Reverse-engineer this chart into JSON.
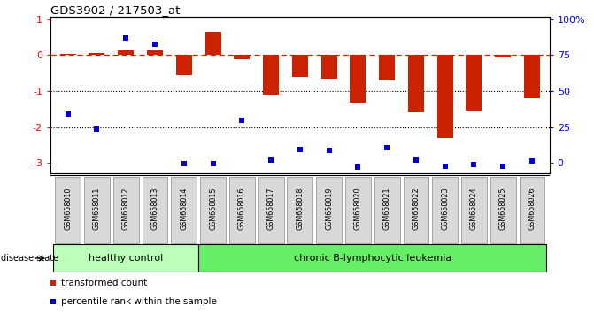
{
  "title": "GDS3902 / 217503_at",
  "samples": [
    "GSM658010",
    "GSM658011",
    "GSM658012",
    "GSM658013",
    "GSM658014",
    "GSM658015",
    "GSM658016",
    "GSM658017",
    "GSM658018",
    "GSM658019",
    "GSM658020",
    "GSM658021",
    "GSM658022",
    "GSM658023",
    "GSM658024",
    "GSM658025",
    "GSM658026"
  ],
  "red_values": [
    0.02,
    0.06,
    0.12,
    0.12,
    -0.55,
    0.65,
    -0.12,
    -1.1,
    -0.62,
    -0.65,
    -1.32,
    -0.72,
    -1.6,
    -2.3,
    -1.55,
    -0.06,
    -1.2
  ],
  "blue_values": [
    -1.65,
    -2.05,
    0.46,
    0.3,
    -3.02,
    -3.02,
    -1.82,
    -2.92,
    -2.62,
    -2.65,
    -3.12,
    -2.58,
    -2.92,
    -3.1,
    -3.05,
    -3.08,
    -2.95
  ],
  "bar_color": "#cc2200",
  "dot_color": "#0000cc",
  "ylim": [
    -3.3,
    1.05
  ],
  "yticks_left": [
    -3,
    -2,
    -1,
    0,
    1
  ],
  "ytick_labels_left": [
    "-3",
    "-2",
    "-1",
    "0",
    "1"
  ],
  "right_tick_pcts": [
    0,
    25,
    50,
    75,
    100
  ],
  "right_tick_labels": [
    "0",
    "25",
    "50",
    "75",
    "100%"
  ],
  "grid_lines": [
    -1.0,
    -2.0
  ],
  "n_healthy": 5,
  "healthy_color": "#bbffbb",
  "leukemia_color": "#66ee66",
  "healthy_label": "healthy control",
  "leukemia_label": "chronic B-lymphocytic leukemia",
  "disease_state_label": "disease state",
  "legend_red": "transformed count",
  "legend_blue": "percentile rank within the sample",
  "bar_width": 0.55
}
